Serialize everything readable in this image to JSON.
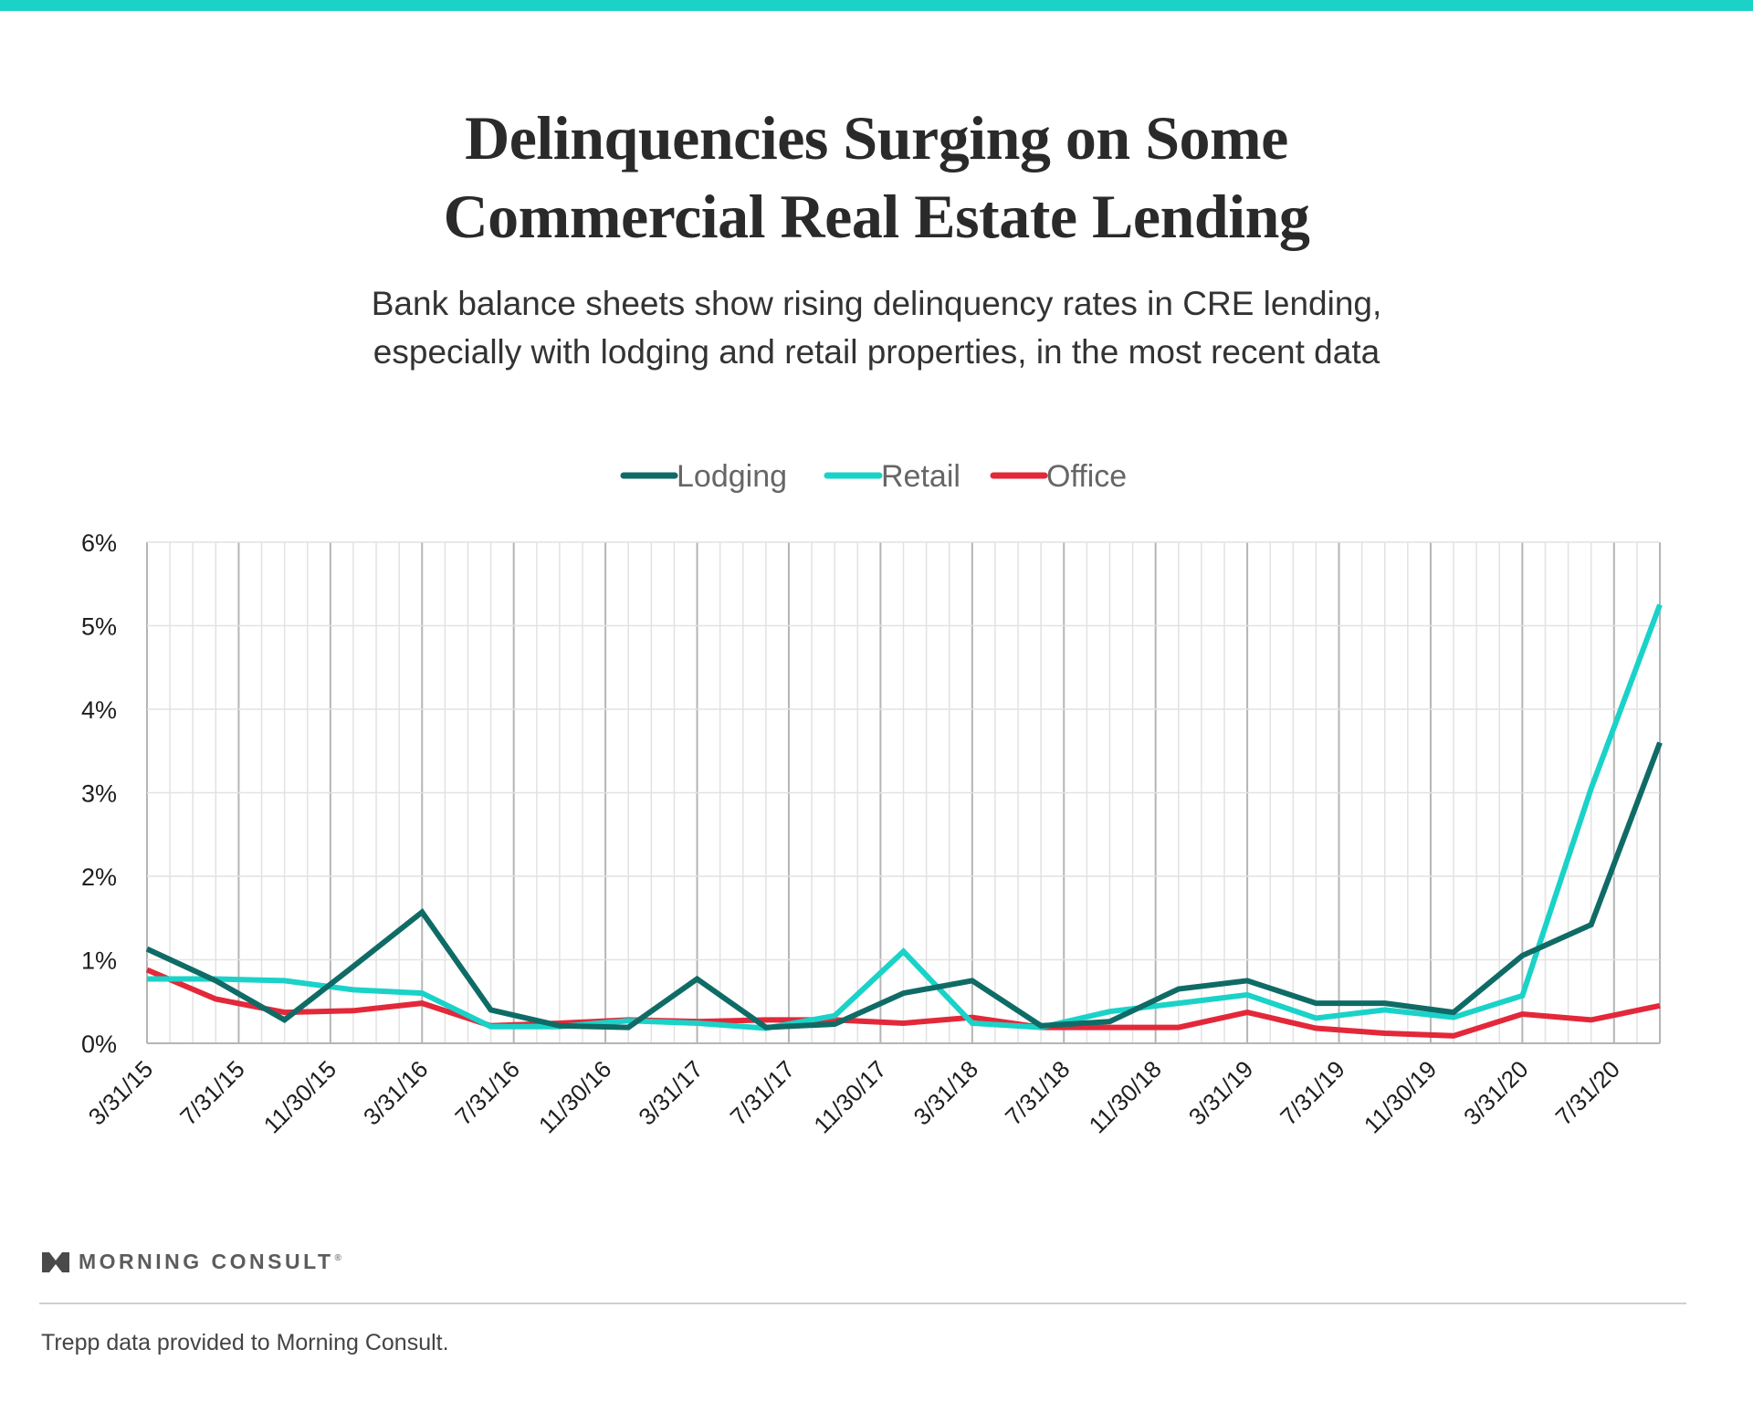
{
  "title_lines": [
    "Delinquencies Surging on Some",
    "Commercial Real Estate Lending"
  ],
  "subtitle_lines": [
    "Bank balance sheets show rising delinquency rates in CRE lending,",
    "especially with lodging and retail properties, in the most recent data"
  ],
  "brand": {
    "name": "MORNING CONSULT",
    "reg_mark": "®"
  },
  "source": "Trepp data provided to Morning Consult.",
  "colors": {
    "accent_bar": "#1ad2c8",
    "lodging": "#0f6b66",
    "retail": "#1ad2c8",
    "office": "#e3283a",
    "grid_major": "#b5b5b5",
    "grid_minor": "#e2e2e2",
    "axis_text": "#1e1e1e",
    "legend_text": "#666666"
  },
  "chart_data": {
    "type": "line",
    "title": "Delinquencies Surging on Some Commercial Real Estate Lending",
    "xlabel": "",
    "ylabel": "",
    "ylim": [
      0,
      6
    ],
    "y_ticks": [
      "0%",
      "1%",
      "2%",
      "3%",
      "4%",
      "5%",
      "6%"
    ],
    "grid": true,
    "legend_position": "top-center",
    "x": [
      "3/31/15",
      "6/30/15",
      "9/30/15",
      "12/31/15",
      "3/31/16",
      "6/30/16",
      "9/30/16",
      "12/31/16",
      "3/31/17",
      "6/30/17",
      "9/30/17",
      "12/31/17",
      "3/31/18",
      "6/30/18",
      "9/30/18",
      "12/31/18",
      "3/31/19",
      "6/30/19",
      "9/30/19",
      "12/31/19",
      "3/31/20",
      "6/30/20",
      "9/30/20"
    ],
    "x_tick_labels": [
      "3/31/15",
      "7/31/15",
      "11/30/15",
      "3/31/16",
      "7/31/16",
      "11/30/16",
      "3/31/17",
      "7/31/17",
      "11/30/17",
      "3/31/18",
      "7/31/18",
      "11/30/18",
      "3/31/19",
      "7/31/19",
      "11/30/19",
      "3/31/20",
      "7/31/20"
    ],
    "series": [
      {
        "name": "Lodging",
        "values": [
          1.13,
          0.75,
          0.28,
          0.92,
          1.57,
          0.4,
          0.21,
          0.19,
          0.77,
          0.19,
          0.23,
          0.6,
          0.75,
          0.21,
          0.26,
          0.65,
          0.75,
          0.48,
          0.48,
          0.37,
          1.05,
          1.42,
          3.6
        ]
      },
      {
        "name": "Retail",
        "values": [
          0.77,
          0.77,
          0.75,
          0.64,
          0.6,
          0.2,
          0.2,
          0.27,
          0.24,
          0.18,
          0.33,
          1.1,
          0.24,
          0.19,
          0.38,
          0.48,
          0.58,
          0.3,
          0.4,
          0.31,
          0.57,
          3.05,
          5.25
        ]
      },
      {
        "name": "Office",
        "values": [
          0.88,
          0.53,
          0.37,
          0.39,
          0.48,
          0.21,
          0.24,
          0.28,
          0.26,
          0.28,
          0.28,
          0.24,
          0.31,
          0.19,
          0.19,
          0.19,
          0.37,
          0.18,
          0.12,
          0.09,
          0.35,
          0.28,
          0.45
        ]
      }
    ]
  }
}
